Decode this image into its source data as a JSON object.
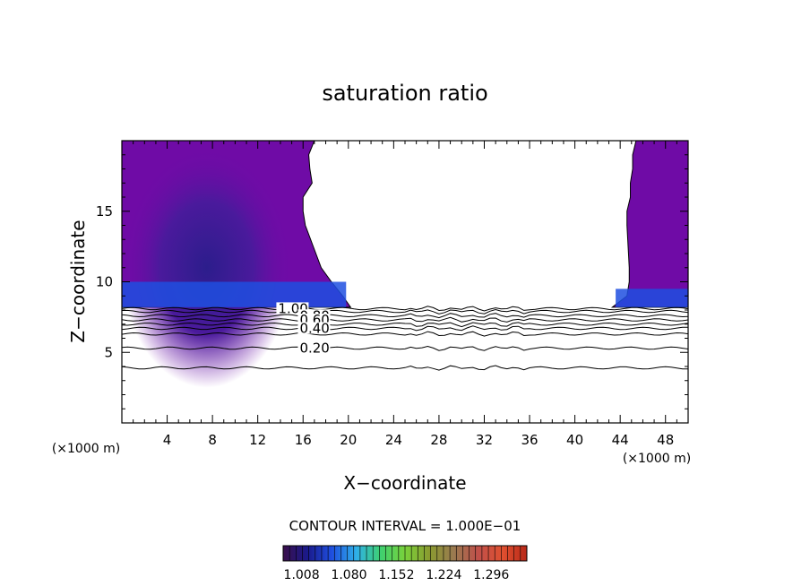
{
  "chart_data": {
    "type": "heatmap",
    "title": "saturation ratio",
    "xlabel": "X−coordinate",
    "ylabel": "Z−coordinate",
    "x_unit": "(×1000 m)",
    "x_unit_left": "(×1000 m)",
    "xlim": [
      0,
      50
    ],
    "ylim": [
      0,
      20
    ],
    "x_ticks": [
      "4",
      "8",
      "12",
      "16",
      "20",
      "24",
      "28",
      "32",
      "36",
      "40",
      "44",
      "48"
    ],
    "y_ticks": [
      "5",
      "10",
      "15"
    ],
    "contour_labels": [
      "1.00",
      "0.80",
      "0.60",
      "0.40",
      "0.20"
    ],
    "contour_levels_z": [
      8.1,
      7.9,
      7.6,
      7.3,
      7.0,
      6.7,
      6.3,
      5.3,
      3.9
    ],
    "filled_region_z_base": 8.2,
    "clear_gap_x_left": [
      17,
      16.5,
      16.6,
      16.8,
      16.0,
      16.0,
      16.2,
      16.9,
      17.6,
      18.5,
      19.5,
      20.2
    ],
    "clear_gap_x_right": [
      45.4,
      45.1,
      45.1,
      44.9,
      44.9,
      44.6,
      44.6,
      44.7,
      44.8,
      44.8,
      44.6,
      43.3
    ],
    "clear_gap_z": [
      20,
      19.0,
      18.0,
      17.0,
      16.0,
      15.0,
      14.0,
      12.5,
      11.0,
      10.0,
      9.0,
      8.2
    ],
    "footer": "CONTOUR INTERVAL = 1.000E−01",
    "colorbar_ticks": [
      "1.008",
      "1.080",
      "1.152",
      "1.224",
      "1.296"
    ],
    "colorbar_range": [
      0.98,
      1.35
    ],
    "colorbar_colors": [
      "#3a0f4a",
      "#1a1a8c",
      "#1f4fe0",
      "#2fb0e8",
      "#3ed070",
      "#7ad13a",
      "#8a9a30",
      "#9a7a50",
      "#c0504a",
      "#e05030",
      "#b82818"
    ],
    "colors": {
      "fill_dark": "#4a0e78",
      "fill_main": "#6f0ba6",
      "fill_blue": "#1f4fe0",
      "line": "#000000"
    }
  }
}
